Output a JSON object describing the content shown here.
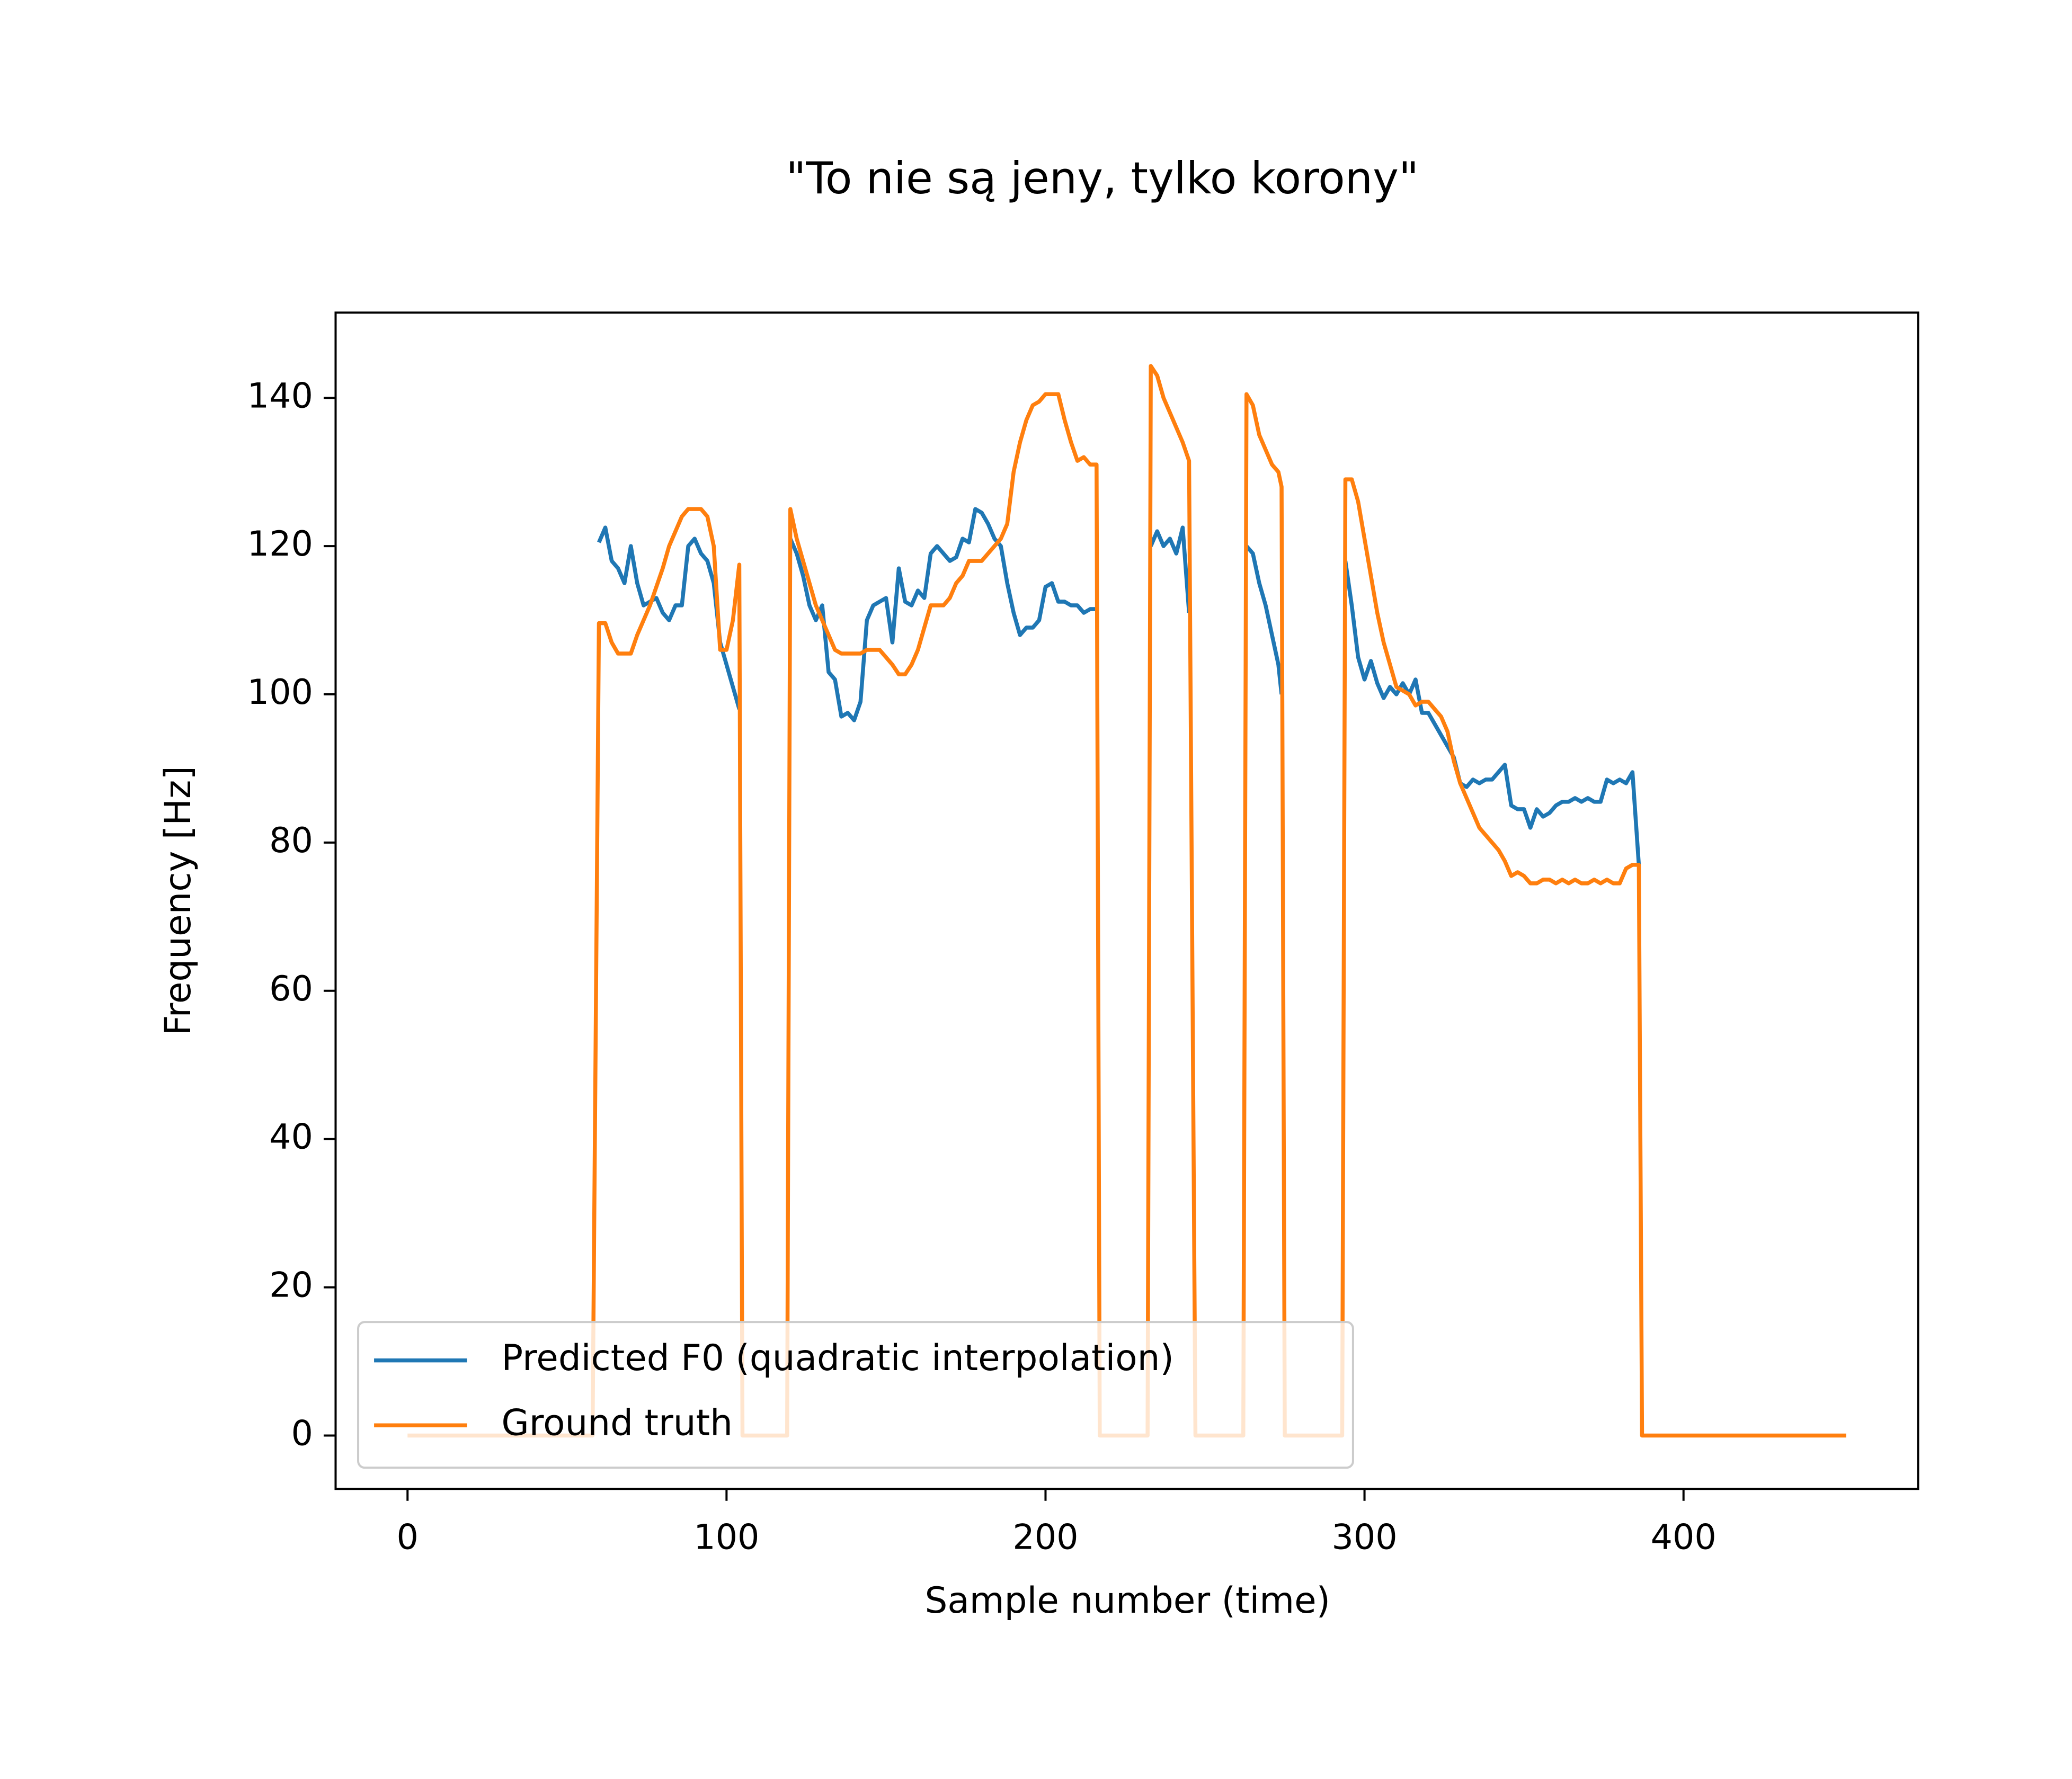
{
  "chart_data": {
    "type": "line",
    "title": "\"To nie są jeny, tylko korony\"",
    "xlabel": "Sample number (time)",
    "ylabel": "Frequency [Hz]",
    "x": [
      0,
      58,
      60,
      62,
      64,
      66,
      68,
      70,
      72,
      74,
      76,
      78,
      80,
      82,
      84,
      86,
      88,
      90,
      92,
      94,
      96,
      98,
      100,
      102,
      104,
      105,
      119,
      120,
      122,
      124,
      126,
      128,
      130,
      132,
      134,
      136,
      138,
      140,
      142,
      144,
      146,
      148,
      150,
      152,
      154,
      156,
      158,
      160,
      162,
      164,
      166,
      168,
      170,
      172,
      174,
      176,
      178,
      180,
      182,
      184,
      186,
      188,
      190,
      192,
      194,
      196,
      198,
      200,
      202,
      204,
      206,
      208,
      210,
      212,
      214,
      216,
      217,
      232,
      233,
      235,
      237,
      239,
      241,
      243,
      245,
      247,
      262,
      263,
      265,
      267,
      269,
      271,
      273,
      274,
      275,
      276,
      293,
      294,
      296,
      298,
      300,
      302,
      304,
      306,
      308,
      310,
      312,
      314,
      316,
      318,
      320,
      322,
      324,
      326,
      328,
      330,
      332,
      334,
      336,
      338,
      340,
      342,
      344,
      346,
      348,
      350,
      352,
      354,
      356,
      358,
      360,
      362,
      364,
      366,
      368,
      370,
      372,
      374,
      376,
      378,
      380,
      382,
      384,
      386,
      387,
      451
    ],
    "series": [
      {
        "name": "Predicted F0 (quadratic interpolation)",
        "color": "#1f77b4",
        "values": [
          null,
          null,
          120.5,
          122.5,
          118,
          117,
          115,
          120,
          115,
          112,
          112.5,
          113,
          111,
          110,
          112,
          112,
          120,
          121,
          119,
          118,
          115,
          107,
          104,
          101,
          98,
          null,
          null,
          121,
          119,
          116,
          112,
          110,
          112,
          103,
          102,
          97,
          97.5,
          96.5,
          99,
          110,
          112,
          112.5,
          113,
          107,
          117,
          112.5,
          112,
          114,
          113,
          119,
          120,
          119,
          118,
          118.5,
          121,
          120.5,
          125,
          124.5,
          123,
          121,
          120,
          115,
          111,
          108,
          109,
          109,
          110,
          114.5,
          115,
          112.5,
          112.5,
          112,
          112,
          111,
          111.5,
          111.5,
          null,
          null,
          120,
          122,
          120,
          121,
          119,
          122.5,
          111,
          null,
          null,
          120,
          119,
          115,
          112,
          108,
          104,
          100,
          null,
          null,
          null,
          118,
          112,
          105,
          102,
          104.5,
          101.5,
          99.5,
          101,
          100,
          101.5,
          100,
          102,
          97.5,
          97.5,
          96,
          94.5,
          93,
          91.5,
          88,
          87.5,
          88.5,
          88,
          88.5,
          88.5,
          89.5,
          90.5,
          85,
          84.5,
          84.5,
          82,
          84.5,
          83.5,
          84,
          85,
          85.5,
          85.5,
          86,
          85.5,
          86,
          85.5,
          85.5,
          88.5,
          88,
          88.5,
          88,
          89.5,
          77,
          null,
          null
        ]
      },
      {
        "name": "Ground truth",
        "color": "#ff7f0e",
        "values": [
          0,
          0,
          109.6,
          109.6,
          107,
          105.5,
          105.5,
          105.5,
          108,
          110,
          112,
          114.5,
          117,
          120,
          122,
          124,
          125,
          125,
          125,
          124,
          120,
          106,
          106,
          110,
          117.5,
          0,
          0,
          125,
          121,
          118,
          115,
          112,
          110,
          108,
          106,
          105.5,
          105.5,
          105.5,
          105.5,
          106,
          106,
          106,
          105,
          104,
          102.7,
          102.7,
          104,
          106,
          109,
          112,
          112,
          112,
          113,
          115,
          116,
          118,
          118,
          118,
          119,
          120,
          121,
          123,
          130,
          134,
          137,
          139,
          139.5,
          140.5,
          140.5,
          140.5,
          137,
          134,
          131.5,
          132,
          131,
          131,
          0,
          0,
          144.3,
          143,
          140,
          138,
          136,
          134,
          131.5,
          0,
          0,
          140.5,
          139,
          135,
          133,
          131,
          130,
          128,
          0,
          0,
          0,
          129,
          129,
          126,
          121,
          116,
          111,
          107,
          104,
          101,
          100.5,
          100,
          98.5,
          99,
          99,
          98,
          97,
          95,
          91,
          88,
          86,
          84,
          82,
          81,
          80,
          79,
          77.5,
          75.5,
          76,
          75.5,
          74.5,
          74.5,
          75,
          75,
          74.5,
          75,
          74.5,
          75,
          74.5,
          74.5,
          75,
          74.5,
          75,
          74.5,
          74.5,
          76.5,
          77,
          77,
          0,
          0
        ]
      }
    ],
    "xlim": [
      -22.55,
      473.55
    ],
    "ylim": [
      -7.2,
      151.5
    ],
    "xticks": [
      0,
      100,
      200,
      300,
      400
    ],
    "yticks": [
      0,
      20,
      40,
      60,
      80,
      100,
      120,
      140
    ],
    "grid": false,
    "legend": "lower left"
  }
}
